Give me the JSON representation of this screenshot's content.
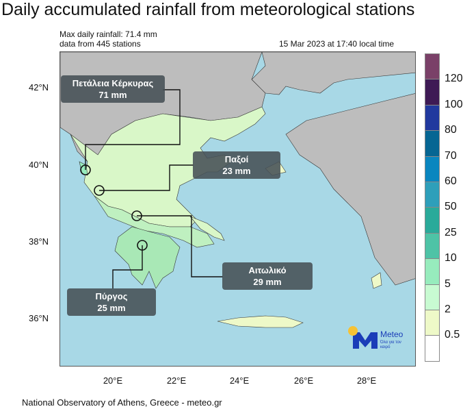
{
  "title": "Daily accumulated rainfall from meteorological stations",
  "info": {
    "max_rainfall": "Max daily rainfall: 71.4 mm",
    "stations": "data from 445 stations",
    "timestamp": "15 Mar 2023 at 17:40 local time"
  },
  "lat_labels": [
    "42°N",
    "40°N",
    "38°N",
    "36°N"
  ],
  "lon_labels": [
    "20°E",
    "22°E",
    "24°E",
    "26°E",
    "28°E"
  ],
  "colorbar": {
    "labels": [
      "120",
      "100",
      "80",
      "70",
      "60",
      "50",
      "25",
      "10",
      "5",
      "2",
      "0.5"
    ],
    "colors": [
      "#7a4068",
      "#3e1a55",
      "#21399e",
      "#066693",
      "#0a86bf",
      "#2e9fba",
      "#2aaa9a",
      "#4ec3a6",
      "#97ecbd",
      "#c8fbd2",
      "#eef9c8",
      "#ffffff"
    ]
  },
  "callouts": [
    {
      "name": "Πετάλεια Κέρκυρας",
      "value": "71 mm"
    },
    {
      "name": "Παξοί",
      "value": "23 mm"
    },
    {
      "name": "Αιτωλικό",
      "value": "29 mm"
    },
    {
      "name": "Πύργος",
      "value": "25 mm"
    }
  ],
  "logo": {
    "brand": "Meteo",
    "tagline": "Όλα για τον καιρό"
  },
  "footer": "National Observatory of Athens, Greece - meteo.gr",
  "colors": {
    "sea": "#a8d8e6",
    "land_other": "#bdbdbd",
    "greece_base": "#eef9c8"
  }
}
